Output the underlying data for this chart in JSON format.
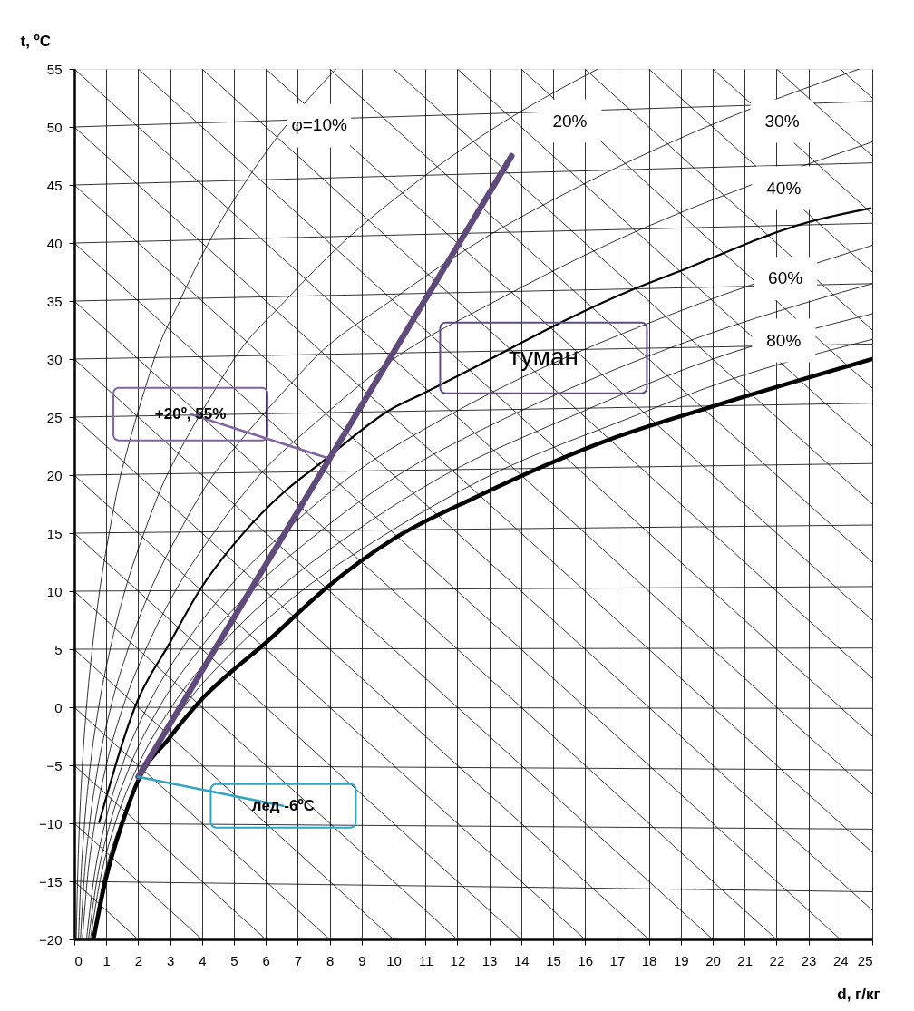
{
  "chart_data": {
    "type": "line",
    "xlabel": "d, г/кг",
    "ylabel": "t, ºC",
    "xlim": [
      0,
      25
    ],
    "ylim": [
      -20,
      55
    ],
    "xticks": [
      0,
      1,
      2,
      3,
      4,
      5,
      6,
      7,
      8,
      9,
      10,
      11,
      12,
      13,
      14,
      15,
      16,
      17,
      18,
      19,
      20,
      21,
      22,
      23,
      24,
      25
    ],
    "yticks": [
      -20,
      -15,
      -10,
      -5,
      0,
      5,
      10,
      15,
      20,
      25,
      30,
      35,
      40,
      45,
      50,
      55
    ],
    "grid": "x",
    "legend": false,
    "marker": "none",
    "line_style": "solid",
    "series": [
      {
        "color": "#000000",
        "x": [
          0,
          2
        ],
        "values": [
          -15,
          -20
        ]
      },
      {
        "color": "#000000",
        "x": [
          0,
          4
        ],
        "values": [
          -10,
          -20
        ]
      },
      {
        "color": "#000000",
        "x": [
          0,
          6
        ],
        "values": [
          -5,
          -20
        ]
      },
      {
        "color": "#000000",
        "x": [
          0,
          8
        ],
        "values": [
          0,
          -20
        ]
      },
      {
        "color": "#000000",
        "x": [
          0,
          10
        ],
        "values": [
          5,
          -20
        ]
      },
      {
        "color": "#000000",
        "x": [
          0,
          12
        ],
        "values": [
          10,
          -20
        ]
      },
      {
        "color": "#000000",
        "x": [
          0,
          14
        ],
        "values": [
          15,
          -20
        ]
      },
      {
        "color": "#000000",
        "x": [
          0,
          16
        ],
        "values": [
          20,
          -20
        ]
      },
      {
        "color": "#000000",
        "x": [
          0,
          18
        ],
        "values": [
          25,
          -20
        ]
      },
      {
        "color": "#000000",
        "x": [
          0,
          20
        ],
        "values": [
          30,
          -20
        ]
      },
      {
        "color": "#000000",
        "x": [
          0,
          22
        ],
        "values": [
          35,
          -20
        ]
      },
      {
        "color": "#000000",
        "x": [
          0,
          24
        ],
        "values": [
          40,
          -20
        ]
      },
      {
        "color": "#000000",
        "x": [
          0,
          25
        ],
        "values": [
          45,
          -17.5
        ]
      },
      {
        "color": "#000000",
        "x": [
          0,
          25
        ],
        "values": [
          50,
          -12.5
        ]
      },
      {
        "color": "#000000",
        "x": [
          0,
          25
        ],
        "values": [
          55,
          -7.5
        ]
      },
      {
        "color": "#000000",
        "x": [
          2,
          25
        ],
        "values": [
          55,
          -2.5
        ]
      },
      {
        "color": "#000000",
        "x": [
          4,
          25
        ],
        "values": [
          55,
          2.5
        ]
      },
      {
        "color": "#000000",
        "x": [
          6,
          25
        ],
        "values": [
          55,
          7.5
        ]
      },
      {
        "color": "#000000",
        "x": [
          8,
          25
        ],
        "values": [
          55,
          12.5
        ]
      },
      {
        "color": "#000000",
        "x": [
          10,
          25
        ],
        "values": [
          55,
          17.5
        ]
      },
      {
        "color": "#000000",
        "x": [
          12,
          25
        ],
        "values": [
          55,
          22.5
        ]
      },
      {
        "color": "#000000",
        "x": [
          14,
          25
        ],
        "values": [
          55,
          27.5
        ]
      },
      {
        "color": "#000000",
        "x": [
          16,
          25
        ],
        "values": [
          55,
          32.5
        ]
      },
      {
        "color": "#000000",
        "x": [
          18,
          25
        ],
        "values": [
          55,
          37.5
        ]
      },
      {
        "color": "#000000",
        "x": [
          20,
          25
        ],
        "values": [
          55,
          42.5
        ]
      },
      {
        "color": "#000000",
        "x": [
          22,
          25
        ],
        "values": [
          55,
          47.5
        ]
      },
      {
        "color": "#000000",
        "x": [
          24,
          25
        ],
        "values": [
          55,
          52.5
        ]
      },
      {
        "color": "#000000",
        "x": [
          0,
          25
        ],
        "values": [
          -15,
          -15.9
        ]
      },
      {
        "color": "#000000",
        "x": [
          0,
          25
        ],
        "values": [
          -10,
          -10.5
        ]
      },
      {
        "color": "#000000",
        "x": [
          0,
          25
        ],
        "values": [
          -5,
          -5.4
        ]
      },
      {
        "color": "#000000",
        "x": [
          0,
          25
        ],
        "values": [
          0,
          -0.1
        ]
      },
      {
        "color": "#000000",
        "x": [
          0,
          25
        ],
        "values": [
          5,
          5.1
        ]
      },
      {
        "color": "#000000",
        "x": [
          0,
          25
        ],
        "values": [
          10,
          10.4
        ]
      },
      {
        "color": "#000000",
        "x": [
          0,
          25
        ],
        "values": [
          15,
          15.7
        ]
      },
      {
        "color": "#000000",
        "x": [
          0,
          25
        ],
        "values": [
          20,
          21.0
        ]
      },
      {
        "color": "#000000",
        "x": [
          0,
          25
        ],
        "values": [
          25,
          26.2
        ]
      },
      {
        "color": "#000000",
        "x": [
          0,
          25
        ],
        "values": [
          30,
          31.3
        ]
      },
      {
        "color": "#000000",
        "x": [
          0,
          25
        ],
        "values": [
          35,
          36.5
        ]
      },
      {
        "color": "#000000",
        "x": [
          0,
          25
        ],
        "values": [
          40,
          41.7
        ]
      },
      {
        "color": "#000000",
        "x": [
          0,
          25
        ],
        "values": [
          45,
          46.9
        ]
      },
      {
        "color": "#000000",
        "x": [
          0,
          25
        ],
        "values": [
          50,
          52.2
        ]
      },
      {
        "color": "#000000",
        "x": [
          0.06,
          0.1,
          0.16,
          0.25,
          0.38,
          0.56,
          0.79,
          1.09,
          1.45,
          1.64,
          2.33,
          2.5,
          3.3,
          4.2,
          5.3,
          6.6,
          8.2
        ],
        "values": [
          -20,
          -15,
          -10,
          -5,
          0,
          5,
          10,
          15,
          20,
          22,
          28.5,
          30,
          35,
          40,
          45,
          50,
          55
        ]
      },
      {
        "color": "#000000",
        "x": [
          0.13,
          0.2,
          0.32,
          0.5,
          0.76,
          1.12,
          1.58,
          2.18,
          2.9,
          3.28,
          4.66,
          5.0,
          6.6,
          8.4,
          10.6,
          13.2,
          16.4
        ],
        "values": [
          -20,
          -15,
          -10,
          -5,
          0,
          5,
          10,
          15,
          20,
          22,
          28.5,
          30,
          35,
          40,
          45,
          50,
          55
        ]
      },
      {
        "color": "#000000",
        "x": [
          0.19,
          0.3,
          0.48,
          0.75,
          1.14,
          1.68,
          2.37,
          3.27,
          4.35,
          4.92,
          6.99,
          7.5,
          9.9,
          12.6,
          15.9,
          19.8,
          24.6
        ],
        "values": [
          -20,
          -15,
          -10,
          -5,
          0,
          5,
          10,
          15,
          20,
          22,
          28.5,
          30,
          35,
          40,
          45,
          50,
          55
        ]
      },
      {
        "color": "#000000",
        "x": [
          0.25,
          0.4,
          0.64,
          1.0,
          1.52,
          2.24,
          3.16,
          4.36,
          5.8,
          7.76,
          10.0,
          13.2,
          16.8,
          21.2,
          25
        ],
        "values": [
          -20,
          -15,
          -10,
          -5,
          0,
          5,
          10,
          15,
          20,
          25,
          30,
          35,
          40,
          45,
          48.7
        ]
      },
      {
        "color": "#000000",
        "x": [
          0.78,
          1.97,
          2.96,
          3.93,
          5.2,
          6.55,
          7.7,
          10.0,
          10.9,
          17.5,
          18.9,
          23.0,
          24.95
        ],
        "values": [
          -9.9,
          0.5,
          5.4,
          10.1,
          14.7,
          18.5,
          21.0,
          25.8,
          27.0,
          36.0,
          37.5,
          41.8,
          43.0
        ]
      },
      {
        "color": "#000000",
        "x": [
          0.38,
          0.6,
          0.96,
          1.5,
          2.28,
          3.36,
          4.74,
          6.54,
          8.7,
          11.64,
          12.3,
          18.84,
          19.8,
          25
        ],
        "values": [
          -20,
          -15,
          -10,
          -5,
          0,
          5,
          10,
          15,
          20,
          25,
          26,
          34,
          35,
          39.8
        ]
      },
      {
        "color": "#000000",
        "x": [
          0.44,
          0.7,
          1.12,
          1.75,
          2.66,
          3.92,
          5.53,
          7.63,
          10.15,
          13.58,
          14.35,
          19.7,
          23.1,
          25
        ],
        "values": [
          -20,
          -15,
          -10,
          -5,
          0,
          5,
          10,
          15,
          20,
          25,
          26,
          32,
          35,
          36.5
        ]
      },
      {
        "color": "#000000",
        "x": [
          0.5,
          0.8,
          1.28,
          2.0,
          3.04,
          4.48,
          6.32,
          8.72,
          11.6,
          15.52,
          20.0,
          25
        ],
        "values": [
          -20,
          -15,
          -10,
          -5,
          0,
          5,
          10,
          15,
          20,
          25,
          30,
          33.9
        ]
      },
      {
        "color": "#000000",
        "x": [
          0.56,
          0.9,
          1.44,
          2.25,
          3.42,
          5.04,
          7.11,
          9.81,
          13.05,
          17.46,
          20.3,
          25
        ],
        "values": [
          -20,
          -15,
          -10,
          -5,
          0,
          5,
          10,
          15,
          20,
          25,
          28,
          31.7
        ]
      },
      {
        "color": "#000000",
        "x": [
          0.6,
          0.97,
          1.5,
          2.0,
          2.96,
          3.93,
          6.1,
          7.9,
          10.0,
          12.5,
          16.7,
          20.1,
          25
        ],
        "values": [
          -20,
          -15,
          -10,
          -6.3,
          -2.7,
          0.5,
          5.8,
          10.3,
          14.5,
          18.0,
          23.0,
          26.0,
          30.0
        ]
      },
      {
        "color": "#604a7b",
        "x": [
          2.0,
          13.7
        ],
        "values": [
          -6.0,
          47.5
        ]
      }
    ],
    "annotations": [
      {
        "text": "+20º, 55%",
        "x": 7.9,
        "y": 21.5
      },
      {
        "text": "лед  -6ºC",
        "x": 2.0,
        "y": -6.0
      },
      "туман",
      "φ=10%",
      "20%",
      "30%",
      "40%",
      "60%",
      "80%"
    ]
  }
}
